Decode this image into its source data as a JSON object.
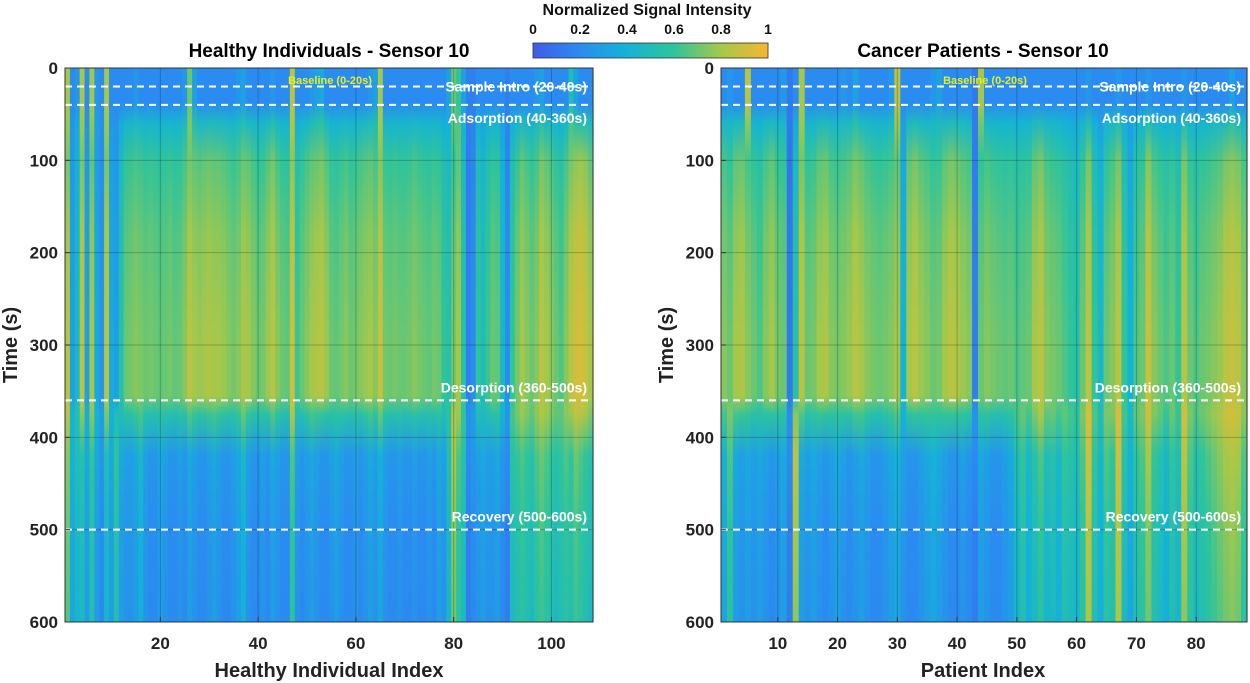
{
  "chart_data": [
    {
      "type": "heatmap",
      "title": "Healthy Individuals - Sensor 10",
      "xlabel": "Healthy Individual Index",
      "ylabel": "Time (s)",
      "xlim": [
        0.5,
        108.5
      ],
      "ylim": [
        0,
        600
      ],
      "y_reversed": true,
      "xticks": [
        20,
        40,
        60,
        80,
        100
      ],
      "yticks": [
        0,
        100,
        200,
        300,
        400,
        500,
        600
      ],
      "grid": true,
      "n_columns": 108,
      "phases": [
        {
          "label": "Baseline (0-20s)",
          "t": 0
        },
        {
          "label": "Sample Intro (20-40s)",
          "t": 20
        },
        {
          "label": "Adsorption (40-360s)",
          "t": 40
        },
        {
          "label": "Desorption (360-500s)",
          "t": 360
        },
        {
          "label": "Recovery (500-600s)",
          "t": 500
        }
      ],
      "baseline_intensity": [
        0.8,
        0.2,
        0.25,
        0.8,
        0.2,
        0.8,
        0.25,
        0.2,
        0.8,
        0.2,
        0.2,
        0.2,
        0.2,
        0.2,
        0.25,
        0.2,
        0.2,
        0.2,
        0.2,
        0.2,
        0.2,
        0.2,
        0.2,
        0.2,
        0.25,
        0.7,
        0.3,
        0.2,
        0.2,
        0.2,
        0.2,
        0.2,
        0.2,
        0.2,
        0.2,
        0.25,
        0.3,
        0.2,
        0.2,
        0.2,
        0.2,
        0.2,
        0.25,
        0.2,
        0.2,
        0.2,
        0.85,
        0.2,
        0.2,
        0.2,
        0.25,
        0.3,
        0.35,
        0.2,
        0.2,
        0.2,
        0.2,
        0.2,
        0.2,
        0.2,
        0.2,
        0.2,
        0.25,
        0.3,
        0.8,
        0.2,
        0.2,
        0.2,
        0.2,
        0.2,
        0.2,
        0.2,
        0.2,
        0.2,
        0.2,
        0.2,
        0.2,
        0.2,
        0.3,
        0.7,
        0.6,
        0.3,
        0.15,
        0.15,
        0.2,
        0.2,
        0.2,
        0.2,
        0.2,
        0.2,
        0.15,
        0.2,
        0.2,
        0.2,
        0.2,
        0.2,
        0.25,
        0.3,
        0.2,
        0.2,
        0.2,
        0.2,
        0.2,
        0.5,
        0.3,
        0.2,
        0.2,
        0.2
      ],
      "adsorption_peak_intensity": [
        0.85,
        0.3,
        0.45,
        0.85,
        0.3,
        0.8,
        0.35,
        0.25,
        0.85,
        0.35,
        0.3,
        0.55,
        0.7,
        0.72,
        0.75,
        0.73,
        0.7,
        0.72,
        0.7,
        0.68,
        0.7,
        0.72,
        0.68,
        0.7,
        0.75,
        0.85,
        0.8,
        0.78,
        0.8,
        0.82,
        0.8,
        0.8,
        0.78,
        0.75,
        0.72,
        0.75,
        0.82,
        0.8,
        0.75,
        0.7,
        0.72,
        0.78,
        0.85,
        0.75,
        0.7,
        0.68,
        0.9,
        0.62,
        0.7,
        0.75,
        0.8,
        0.82,
        0.85,
        0.78,
        0.7,
        0.68,
        0.72,
        0.75,
        0.7,
        0.72,
        0.75,
        0.78,
        0.8,
        0.75,
        0.88,
        0.72,
        0.7,
        0.72,
        0.7,
        0.7,
        0.72,
        0.75,
        0.72,
        0.7,
        0.68,
        0.72,
        0.7,
        0.6,
        0.55,
        0.72,
        0.8,
        0.55,
        0.15,
        0.2,
        0.6,
        0.5,
        0.62,
        0.7,
        0.68,
        0.45,
        0.2,
        0.6,
        0.72,
        0.8,
        0.75,
        0.7,
        0.75,
        0.85,
        0.8,
        0.75,
        0.7,
        0.65,
        0.75,
        0.85,
        0.9,
        0.92,
        0.88,
        0.8
      ],
      "recovery_intensity": [
        0.7,
        0.35,
        0.45,
        0.5,
        0.3,
        0.55,
        0.3,
        0.2,
        0.45,
        0.3,
        0.55,
        0.3,
        0.25,
        0.25,
        0.3,
        0.4,
        0.25,
        0.2,
        0.2,
        0.3,
        0.25,
        0.2,
        0.2,
        0.25,
        0.2,
        0.3,
        0.25,
        0.2,
        0.2,
        0.25,
        0.3,
        0.25,
        0.2,
        0.2,
        0.25,
        0.3,
        0.4,
        0.25,
        0.2,
        0.2,
        0.25,
        0.2,
        0.3,
        0.25,
        0.2,
        0.2,
        0.6,
        0.25,
        0.2,
        0.25,
        0.3,
        0.25,
        0.2,
        0.2,
        0.25,
        0.3,
        0.25,
        0.2,
        0.2,
        0.25,
        0.2,
        0.25,
        0.3,
        0.25,
        0.35,
        0.25,
        0.2,
        0.2,
        0.25,
        0.2,
        0.2,
        0.25,
        0.2,
        0.2,
        0.25,
        0.2,
        0.3,
        0.25,
        0.45,
        0.75,
        0.6,
        0.5,
        0.15,
        0.2,
        0.25,
        0.3,
        0.25,
        0.25,
        0.3,
        0.2,
        0.15,
        0.5,
        0.55,
        0.6,
        0.55,
        0.5,
        0.6,
        0.65,
        0.6,
        0.55,
        0.5,
        0.55,
        0.6,
        0.55,
        0.65,
        0.6,
        0.55,
        0.5
      ]
    },
    {
      "type": "heatmap",
      "title": "Cancer Patients - Sensor 10",
      "xlabel": "Patient Index",
      "ylabel": "Time (s)",
      "xlim": [
        0.5,
        88.5
      ],
      "ylim": [
        0,
        600
      ],
      "y_reversed": true,
      "xticks": [
        10,
        20,
        30,
        40,
        50,
        60,
        70,
        80
      ],
      "yticks": [
        0,
        100,
        200,
        300,
        400,
        500,
        600
      ],
      "grid": true,
      "n_columns": 88,
      "phases": [
        {
          "label": "Baseline (0-20s)",
          "t": 0
        },
        {
          "label": "Sample Intro (20-40s)",
          "t": 20
        },
        {
          "label": "Adsorption (40-360s)",
          "t": 40
        },
        {
          "label": "Desorption (360-500s)",
          "t": 360
        },
        {
          "label": "Recovery (500-600s)",
          "t": 500
        }
      ],
      "baseline_intensity": [
        0.2,
        0.25,
        0.2,
        0.2,
        0.85,
        0.2,
        0.2,
        0.2,
        0.2,
        0.2,
        0.25,
        0.12,
        0.2,
        0.8,
        0.2,
        0.2,
        0.2,
        0.2,
        0.2,
        0.2,
        0.25,
        0.2,
        0.3,
        0.2,
        0.2,
        0.2,
        0.2,
        0.2,
        0.25,
        0.85,
        0.2,
        0.2,
        0.2,
        0.2,
        0.2,
        0.25,
        0.3,
        0.2,
        0.2,
        0.2,
        0.2,
        0.2,
        0.12,
        0.8,
        0.2,
        0.2,
        0.2,
        0.2,
        0.2,
        0.2,
        0.2,
        0.2,
        0.2,
        0.2,
        0.2,
        0.2,
        0.2,
        0.2,
        0.2,
        0.2,
        0.2,
        0.25,
        0.2,
        0.2,
        0.2,
        0.2,
        0.25,
        0.2,
        0.2,
        0.2,
        0.2,
        0.25,
        0.2,
        0.2,
        0.2,
        0.2,
        0.2,
        0.25,
        0.2,
        0.2,
        0.2,
        0.2,
        0.2,
        0.2,
        0.2,
        0.3,
        0.2,
        0.2
      ],
      "adsorption_peak_intensity": [
        0.75,
        0.7,
        0.8,
        0.82,
        0.75,
        0.7,
        0.65,
        0.75,
        0.8,
        0.72,
        0.7,
        0.12,
        0.55,
        0.85,
        0.7,
        0.72,
        0.8,
        0.82,
        0.75,
        0.72,
        0.75,
        0.78,
        0.85,
        0.8,
        0.75,
        0.72,
        0.7,
        0.72,
        0.75,
        0.8,
        0.4,
        0.8,
        0.85,
        0.78,
        0.75,
        0.7,
        0.72,
        0.8,
        0.85,
        0.82,
        0.78,
        0.75,
        0.15,
        0.7,
        0.75,
        0.72,
        0.7,
        0.68,
        0.7,
        0.65,
        0.68,
        0.7,
        0.8,
        0.85,
        0.75,
        0.72,
        0.7,
        0.65,
        0.6,
        0.55,
        0.7,
        0.85,
        0.6,
        0.45,
        0.7,
        0.75,
        0.85,
        0.6,
        0.4,
        0.65,
        0.7,
        0.88,
        0.75,
        0.7,
        0.65,
        0.7,
        0.6,
        0.85,
        0.7,
        0.65,
        0.7,
        0.72,
        0.75,
        0.78,
        0.85,
        0.88,
        0.85,
        0.75
      ],
      "recovery_intensity": [
        0.35,
        0.6,
        0.3,
        0.25,
        0.3,
        0.25,
        0.3,
        0.25,
        0.2,
        0.25,
        0.3,
        0.15,
        0.8,
        0.3,
        0.25,
        0.3,
        0.25,
        0.2,
        0.25,
        0.3,
        0.25,
        0.2,
        0.25,
        0.3,
        0.25,
        0.2,
        0.2,
        0.25,
        0.3,
        0.35,
        0.25,
        0.2,
        0.2,
        0.25,
        0.3,
        0.35,
        0.3,
        0.25,
        0.2,
        0.2,
        0.25,
        0.2,
        0.15,
        0.3,
        0.25,
        0.2,
        0.2,
        0.25,
        0.3,
        0.45,
        0.55,
        0.4,
        0.5,
        0.6,
        0.45,
        0.5,
        0.4,
        0.55,
        0.5,
        0.45,
        0.6,
        0.85,
        0.55,
        0.4,
        0.6,
        0.55,
        0.85,
        0.5,
        0.35,
        0.55,
        0.6,
        0.75,
        0.55,
        0.5,
        0.4,
        0.55,
        0.45,
        0.8,
        0.6,
        0.5,
        0.55,
        0.6,
        0.65,
        0.7,
        0.75,
        0.78,
        0.75,
        0.6
      ]
    }
  ],
  "colorbar": {
    "title": "Normalized Signal Intensity",
    "ticks": [
      "0",
      "0.2",
      "0.4",
      "0.6",
      "0.8",
      "1"
    ],
    "range": [
      0,
      1
    ],
    "colormap": "parula",
    "colors": [
      "#3f5ce8",
      "#2a8cf0",
      "#14b3d6",
      "#2fc49a",
      "#a6c84a",
      "#f6b631"
    ]
  },
  "phase_line_color": "#ffffff",
  "baseline_label_color": "#e8f020"
}
